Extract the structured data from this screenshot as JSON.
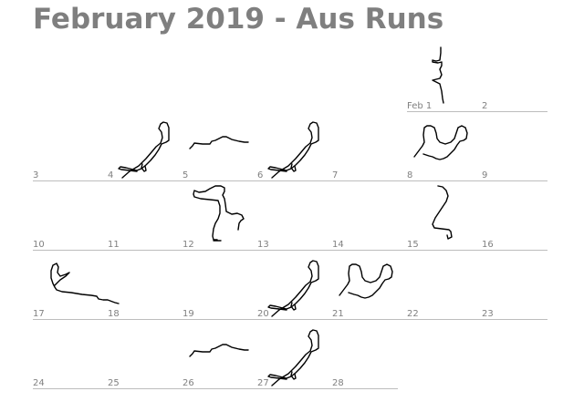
{
  "title": "February 2019 - Aus Runs",
  "weeks": [
    {
      "days": [
        {
          "col": 5,
          "label": "Feb 1",
          "route": "cbd-north"
        },
        {
          "col": 6,
          "label": "2",
          "route": null
        }
      ]
    },
    {
      "days": [
        {
          "col": 0,
          "label": "3",
          "route": null
        },
        {
          "col": 1,
          "label": "4",
          "route": "river-loop"
        },
        {
          "col": 2,
          "label": "5",
          "route": "coast"
        },
        {
          "col": 3,
          "label": "6",
          "route": "river-loop"
        },
        {
          "col": 4,
          "label": "7",
          "route": null
        },
        {
          "col": 5,
          "label": "8",
          "route": "bay-loop"
        },
        {
          "col": 6,
          "label": "9",
          "route": null
        }
      ]
    },
    {
      "days": [
        {
          "col": 0,
          "label": "10",
          "route": null
        },
        {
          "col": 1,
          "label": "11",
          "route": null
        },
        {
          "col": 2,
          "label": "12",
          "route": "suburb"
        },
        {
          "col": 3,
          "label": "13",
          "route": null
        },
        {
          "col": 4,
          "label": "14",
          "route": null
        },
        {
          "col": 5,
          "label": "15",
          "route": "cbd-south"
        },
        {
          "col": 6,
          "label": "16",
          "route": null
        }
      ]
    },
    {
      "days": [
        {
          "col": 0,
          "label": "17",
          "route": "creek"
        },
        {
          "col": 1,
          "label": "18",
          "route": null
        },
        {
          "col": 2,
          "label": "19",
          "route": null
        },
        {
          "col": 3,
          "label": "20",
          "route": "river-loop"
        },
        {
          "col": 4,
          "label": "21",
          "route": "bay-loop"
        },
        {
          "col": 5,
          "label": "22",
          "route": null
        },
        {
          "col": 6,
          "label": "23",
          "route": null
        }
      ]
    },
    {
      "days": [
        {
          "col": 0,
          "label": "24",
          "route": null
        },
        {
          "col": 1,
          "label": "25",
          "route": null
        },
        {
          "col": 2,
          "label": "26",
          "route": "coast"
        },
        {
          "col": 3,
          "label": "27",
          "route": "river-loop"
        },
        {
          "col": 4,
          "label": "28",
          "route": null
        }
      ]
    }
  ]
}
